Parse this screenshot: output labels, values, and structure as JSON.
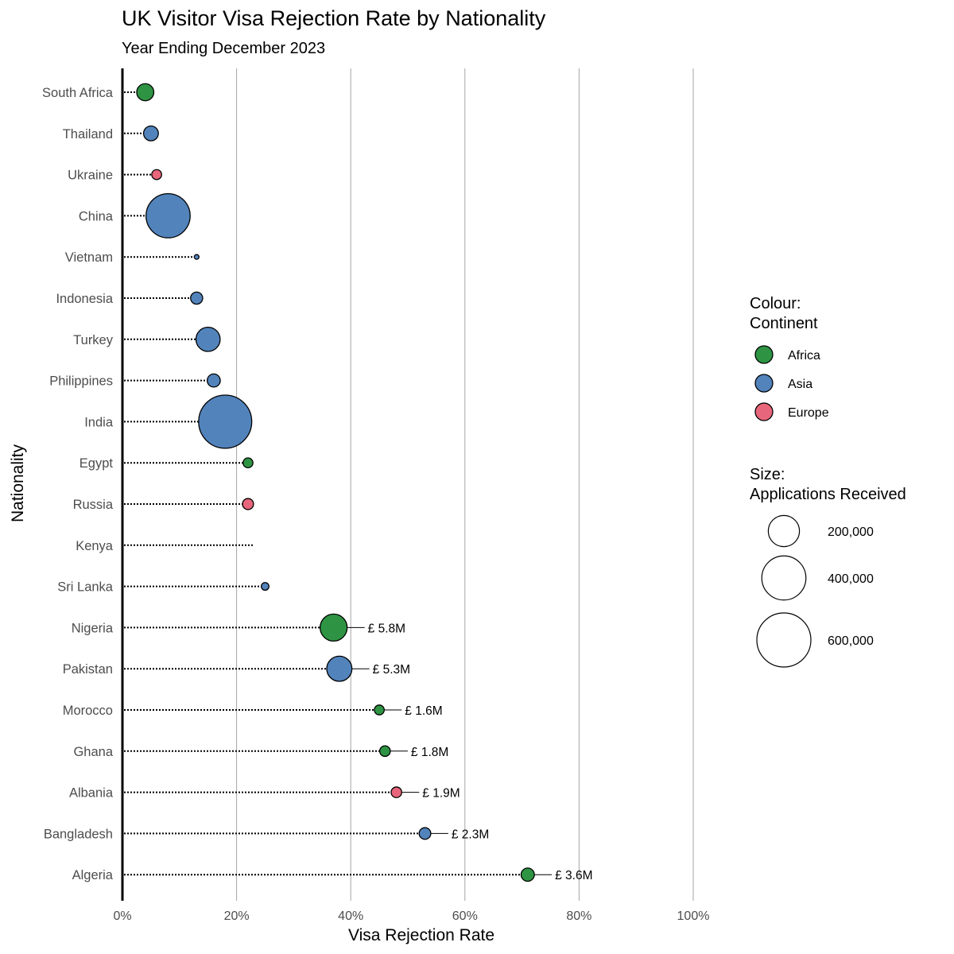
{
  "colors": {
    "Africa": "#2e9443",
    "Asia": "#5283bb",
    "Europe": "#e8667b",
    "gridline": "#a6a6a6",
    "axis": "#000000",
    "annotation_line": "#000000"
  },
  "chart_data": {
    "type": "scatter",
    "title": "UK Visitor Visa Rejection Rate by Nationality",
    "subtitle": "Year Ending December 2023",
    "xlabel": "Visa Rejection Rate",
    "ylabel": "Nationality",
    "xlim": [
      0,
      100
    ],
    "x_ticks": [
      0,
      20,
      40,
      60,
      80,
      100
    ],
    "x_tick_labels": [
      "0%",
      "20%",
      "40%",
      "60%",
      "80%",
      "100%"
    ],
    "grid": "vertical major",
    "points": [
      {
        "nationality": "South Africa",
        "rejection_rate": 4,
        "continent": "Africa",
        "applications": 60000,
        "annotation": ""
      },
      {
        "nationality": "Thailand",
        "rejection_rate": 5,
        "continent": "Asia",
        "applications": 45000,
        "annotation": ""
      },
      {
        "nationality": "Ukraine",
        "rejection_rate": 6,
        "continent": "Europe",
        "applications": 20000,
        "annotation": ""
      },
      {
        "nationality": "China",
        "rejection_rate": 8,
        "continent": "Asia",
        "applications": 400000,
        "annotation": ""
      },
      {
        "nationality": "Vietnam",
        "rejection_rate": 13,
        "continent": "Asia",
        "applications": 4000,
        "annotation": ""
      },
      {
        "nationality": "Indonesia",
        "rejection_rate": 13,
        "continent": "Asia",
        "applications": 30000,
        "annotation": ""
      },
      {
        "nationality": "Turkey",
        "rejection_rate": 15,
        "continent": "Asia",
        "applications": 120000,
        "annotation": ""
      },
      {
        "nationality": "Philippines",
        "rejection_rate": 16,
        "continent": "Asia",
        "applications": 35000,
        "annotation": ""
      },
      {
        "nationality": "India",
        "rejection_rate": 18,
        "continent": "Asia",
        "applications": 580000,
        "annotation": ""
      },
      {
        "nationality": "Egypt",
        "rejection_rate": 22,
        "continent": "Africa",
        "applications": 20000,
        "annotation": ""
      },
      {
        "nationality": "Russia",
        "rejection_rate": 22,
        "continent": "Europe",
        "applications": 25000,
        "annotation": ""
      },
      {
        "nationality": "Kenya",
        "rejection_rate": 23,
        "continent": "Africa",
        "applications": 0,
        "annotation": ""
      },
      {
        "nationality": "Sri Lanka",
        "rejection_rate": 25,
        "continent": "Asia",
        "applications": 12000,
        "annotation": ""
      },
      {
        "nationality": "Nigeria",
        "rejection_rate": 37,
        "continent": "Africa",
        "applications": 150000,
        "annotation": "£ 5.8M"
      },
      {
        "nationality": "Pakistan",
        "rejection_rate": 38,
        "continent": "Asia",
        "applications": 130000,
        "annotation": "£ 5.3M"
      },
      {
        "nationality": "Morocco",
        "rejection_rate": 45,
        "continent": "Africa",
        "applications": 20000,
        "annotation": "£ 1.6M"
      },
      {
        "nationality": "Ghana",
        "rejection_rate": 46,
        "continent": "Africa",
        "applications": 23000,
        "annotation": "£ 1.8M"
      },
      {
        "nationality": "Albania",
        "rejection_rate": 48,
        "continent": "Europe",
        "applications": 23000,
        "annotation": "£ 1.9M"
      },
      {
        "nationality": "Bangladesh",
        "rejection_rate": 53,
        "continent": "Asia",
        "applications": 28000,
        "annotation": "£ 2.3M"
      },
      {
        "nationality": "Algeria",
        "rejection_rate": 71,
        "continent": "Africa",
        "applications": 36000,
        "annotation": "£ 3.6M"
      }
    ],
    "legend": {
      "colour_title_line1": "Colour:",
      "colour_title_line2": "Continent",
      "colour_entries": [
        "Africa",
        "Asia",
        "Europe"
      ],
      "size_title_line1": "Size:",
      "size_title_line2": "Applications Received",
      "size_entries": [
        {
          "value": 200000,
          "label": "200,000"
        },
        {
          "value": 400000,
          "label": "400,000"
        },
        {
          "value": 600000,
          "label": "600,000"
        }
      ],
      "position": "right"
    }
  }
}
